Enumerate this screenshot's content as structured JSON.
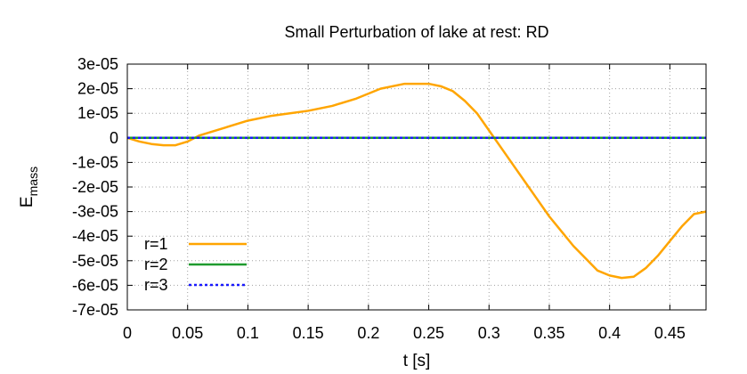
{
  "chart_data": {
    "type": "line",
    "title": "Small Perturbation of lake at rest: RD",
    "xlabel": "t [s]",
    "ylabel_main": "E",
    "ylabel_sub": "mass",
    "xlim": [
      0,
      0.48
    ],
    "ylim": [
      -7e-05,
      3e-05
    ],
    "xticks": [
      0,
      0.05,
      0.1,
      0.15,
      0.2,
      0.25,
      0.3,
      0.35,
      0.4,
      0.45
    ],
    "xtick_labels": [
      "0",
      "0.05",
      "0.1",
      "0.15",
      "0.2",
      "0.25",
      "0.3",
      "0.35",
      "0.4",
      "0.45"
    ],
    "yticks": [
      3e-05,
      2e-05,
      1e-05,
      0,
      -1e-05,
      -2e-05,
      -3e-05,
      -4e-05,
      -5e-05,
      -6e-05,
      -7e-05
    ],
    "ytick_labels": [
      "3e-05",
      "2e-05",
      "1e-05",
      "0",
      "-1e-05",
      "-2e-05",
      "-3e-05",
      "-4e-05",
      "-5e-05",
      "-6e-05",
      "-7e-05"
    ],
    "grid": true,
    "legend_position": "bottom-left",
    "series": [
      {
        "name": "r=1",
        "color": "#ffa500",
        "style": "solid",
        "x": [
          0,
          0.01,
          0.02,
          0.03,
          0.04,
          0.05,
          0.06,
          0.08,
          0.1,
          0.12,
          0.15,
          0.17,
          0.19,
          0.21,
          0.23,
          0.24,
          0.25,
          0.26,
          0.27,
          0.28,
          0.29,
          0.3,
          0.31,
          0.32,
          0.33,
          0.34,
          0.35,
          0.36,
          0.37,
          0.38,
          0.39,
          0.4,
          0.41,
          0.42,
          0.43,
          0.44,
          0.45,
          0.46,
          0.47,
          0.48
        ],
        "y": [
          0,
          -1.5e-06,
          -2.5e-06,
          -3e-06,
          -3e-06,
          -1.5e-06,
          1e-06,
          4e-06,
          7e-06,
          9e-06,
          1.1e-05,
          1.3e-05,
          1.6e-05,
          2e-05,
          2.2e-05,
          2.2e-05,
          2.2e-05,
          2.1e-05,
          1.9e-05,
          1.5e-05,
          1e-05,
          3e-06,
          -4e-06,
          -1.1e-05,
          -1.8e-05,
          -2.5e-05,
          -3.2e-05,
          -3.8e-05,
          -4.4e-05,
          -4.9e-05,
          -5.4e-05,
          -5.6e-05,
          -5.7e-05,
          -5.65e-05,
          -5.3e-05,
          -4.8e-05,
          -4.2e-05,
          -3.6e-05,
          -3.1e-05,
          -3e-05
        ]
      },
      {
        "name": "r=2",
        "color": "#1f9b2e",
        "style": "solid",
        "x": [
          0,
          0.48
        ],
        "y": [
          0,
          0
        ]
      },
      {
        "name": "r=3",
        "color": "#1a1aff",
        "style": "dotted",
        "x": [
          0,
          0.48
        ],
        "y": [
          0,
          0
        ]
      }
    ]
  }
}
